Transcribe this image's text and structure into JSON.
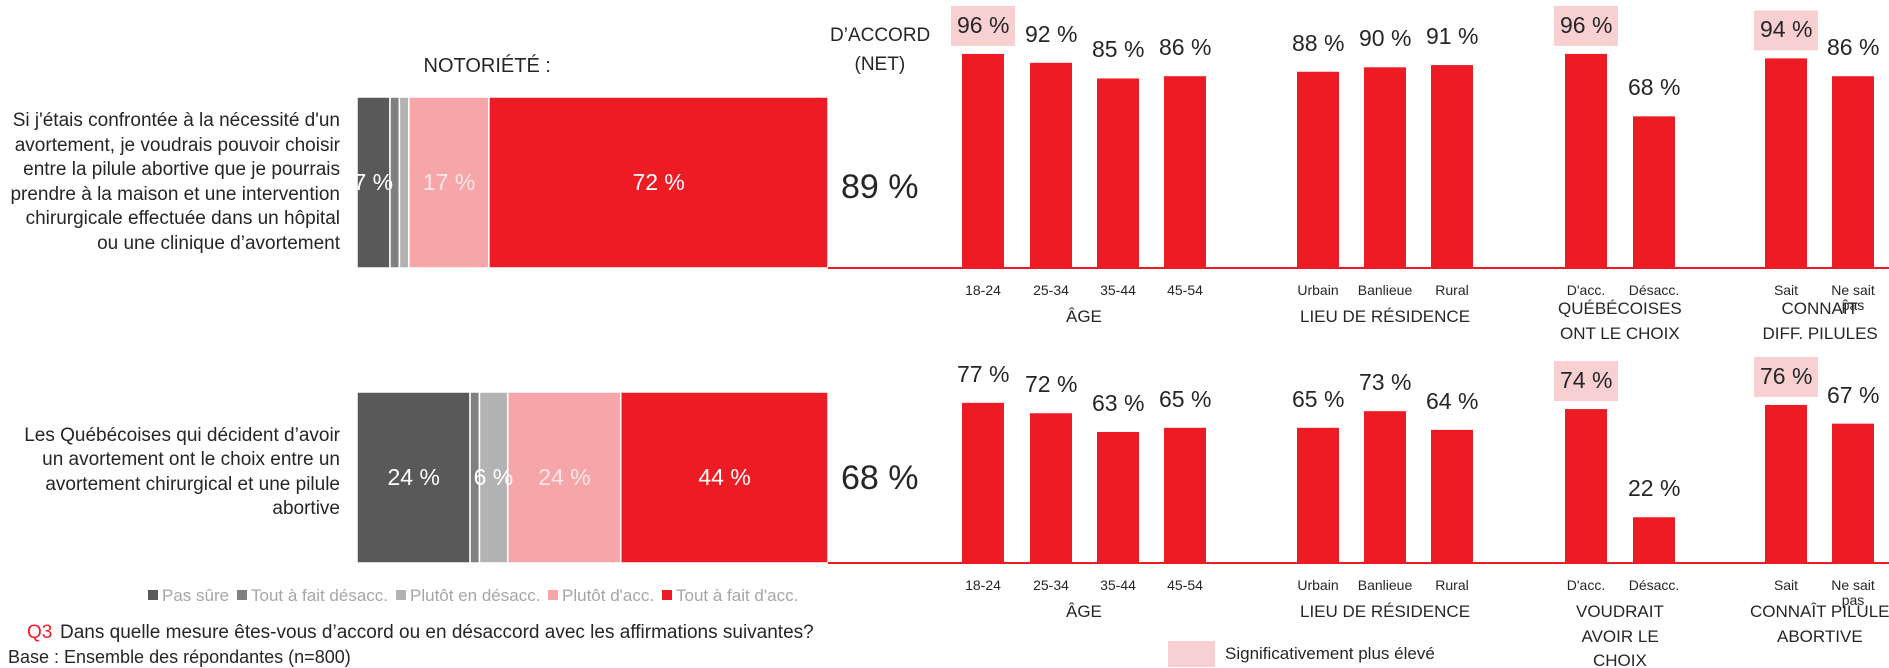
{
  "question": {
    "code": "Q3",
    "text": "Dans quelle mesure êtes-vous d’accord ou en désaccord avec les affirmations suivantes?"
  },
  "base": "Base : Ensemble des répondantes (n=800)",
  "significance_legend": {
    "text": "Significativement plus élevé",
    "color": "#f8d0d2"
  },
  "chart_data": [
    {
      "type": "stacked-bar-horizontal",
      "subtitle": "NOTORIÉTÉ :",
      "xlim": [
        0,
        100
      ],
      "categories": [
        "Si j'étais confrontée à la nécessité d'un avortement, je voudrais pouvoir choisir entre la pilule abortive que je pourrais prendre à la maison et une intervention chirurgicale effectuée dans un hôpital ou une clinique d’avortement",
        "Les Québécoises qui décident d’avoir un avortement ont le choix entre un avortement chirurgical et une pilule abortive"
      ],
      "series": [
        {
          "name": "Pas sûre",
          "color": "#595959",
          "values": [
            7,
            24
          ],
          "value_labels": [
            "7 %",
            "24 %"
          ]
        },
        {
          "name": "Tout à fait désacc.",
          "color": "#808080",
          "values": [
            2,
            2
          ],
          "value_labels": [
            null,
            null
          ]
        },
        {
          "name": "Plutôt en désacc.",
          "color": "#b3b3b3",
          "values": [
            2,
            6
          ],
          "value_labels": [
            null,
            "6 %"
          ]
        },
        {
          "name": "Plutôt d'acc.",
          "color": "#f6a5a9",
          "values": [
            17,
            24
          ],
          "value_labels": [
            "17 %",
            "24 %"
          ]
        },
        {
          "name": "Tout à fait d'acc.",
          "color": "#ed1c24",
          "values": [
            72,
            44
          ],
          "value_labels": [
            "72 %",
            "44 %"
          ]
        }
      ],
      "net": {
        "title": [
          "D’ACCORD",
          "(NET)"
        ],
        "values": [
          89,
          68
        ],
        "value_labels": [
          "89 %",
          "68 %"
        ]
      }
    },
    {
      "type": "bar",
      "title": [
        "ÂGE"
      ],
      "categories": [
        "18-24",
        "25-34",
        "35-44",
        "45-54"
      ],
      "values": [
        96,
        92,
        85,
        86
      ],
      "value_labels": [
        "96 %",
        "92 %",
        "85 %",
        "86 %"
      ],
      "highlight": [
        true,
        false,
        false,
        false
      ],
      "color": "#ed1c24",
      "ylim": [
        0,
        100
      ]
    },
    {
      "type": "bar",
      "title": [
        "LIEU DE RÉSIDENCE"
      ],
      "categories": [
        "Urbain",
        "Banlieue",
        "Rural"
      ],
      "values": [
        88,
        90,
        91
      ],
      "value_labels": [
        "88 %",
        "90 %",
        "91 %"
      ],
      "highlight": [
        false,
        false,
        false
      ],
      "color": "#ed1c24",
      "ylim": [
        0,
        100
      ]
    },
    {
      "type": "bar",
      "title": [
        "QUÉBÉCOISES",
        "ONT LE CHOIX"
      ],
      "categories": [
        "D'acc.",
        "Désacc."
      ],
      "values": [
        96,
        68
      ],
      "value_labels": [
        "96 %",
        "68 %"
      ],
      "highlight": [
        true,
        false
      ],
      "color": "#ed1c24",
      "ylim": [
        0,
        100
      ]
    },
    {
      "type": "bar",
      "title": [
        "CONNAÎT",
        "DIFF. PILULES"
      ],
      "categories": [
        "Sait",
        "Ne sait pas"
      ],
      "values": [
        94,
        86
      ],
      "value_labels": [
        "94 %",
        "86 %"
      ],
      "highlight": [
        true,
        false
      ],
      "color": "#ed1c24",
      "ylim": [
        0,
        100
      ]
    },
    {
      "type": "bar",
      "title": [
        "ÂGE"
      ],
      "categories": [
        "18-24",
        "25-34",
        "35-44",
        "45-54"
      ],
      "values": [
        77,
        72,
        63,
        65
      ],
      "value_labels": [
        "77 %",
        "72 %",
        "63 %",
        "65 %"
      ],
      "highlight": [
        false,
        false,
        false,
        false
      ],
      "color": "#ed1c24",
      "ylim": [
        0,
        100
      ]
    },
    {
      "type": "bar",
      "title": [
        "LIEU DE RÉSIDENCE"
      ],
      "categories": [
        "Urbain",
        "Banlieue",
        "Rural"
      ],
      "values": [
        65,
        73,
        64
      ],
      "value_labels": [
        "65 %",
        "73 %",
        "64 %"
      ],
      "highlight": [
        false,
        false,
        false
      ],
      "color": "#ed1c24",
      "ylim": [
        0,
        100
      ]
    },
    {
      "type": "bar",
      "title": [
        "VOUDRAIT",
        "AVOIR LE",
        "CHOIX"
      ],
      "categories": [
        "D'acc.",
        "Désacc."
      ],
      "values": [
        74,
        22
      ],
      "value_labels": [
        "74 %",
        "22 %"
      ],
      "highlight": [
        true,
        false
      ],
      "color": "#ed1c24",
      "ylim": [
        0,
        100
      ]
    },
    {
      "type": "bar",
      "title": [
        "CONNAÎT PILULE",
        "ABORTIVE"
      ],
      "categories": [
        "Sait",
        "Ne sait pas"
      ],
      "values": [
        76,
        67
      ],
      "value_labels": [
        "76 %",
        "67 %"
      ],
      "highlight": [
        true,
        false
      ],
      "color": "#ed1c24",
      "ylim": [
        0,
        100
      ]
    }
  ]
}
